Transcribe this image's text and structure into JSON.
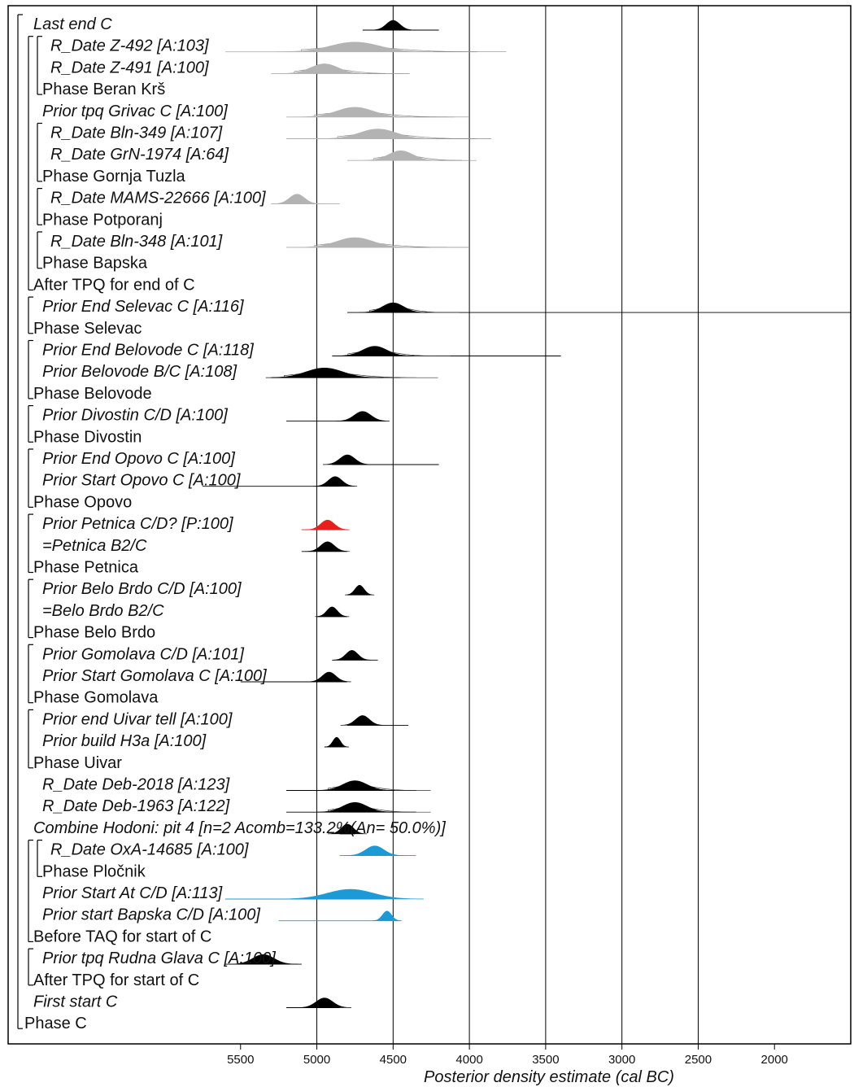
{
  "chart_data": {
    "type": "ridgeline",
    "xlabel": "Posterior density estimate (cal BC)",
    "xlim": [
      6000,
      1500
    ],
    "x_ticks": [
      5500,
      5000,
      4500,
      4000,
      3500,
      3000,
      2500,
      2000
    ],
    "grid_lines": [
      5000,
      4500,
      4000,
      3500,
      3000,
      2500
    ],
    "rows": [
      {
        "label": "Last end C",
        "italic": true,
        "level": 1,
        "color": "#000000",
        "peak": 4500,
        "sd": 45,
        "range": [
          4700,
          4200
        ]
      },
      {
        "label": "R_Date Z-492 [A:103]",
        "italic": true,
        "level": 3,
        "color": "#b3b3b3",
        "peak": 4750,
        "sd": 160,
        "range": [
          5600,
          3950
        ],
        "prior": true
      },
      {
        "label": "R_Date Z-491 [A:100]",
        "italic": true,
        "level": 3,
        "color": "#b3b3b3",
        "peak": 4950,
        "sd": 90,
        "range": [
          5300,
          4550
        ],
        "prior": true
      },
      {
        "label": "Phase Beran Krš",
        "italic": false,
        "level": 2
      },
      {
        "label": "Prior tpq Grivac C [A:100]",
        "italic": true,
        "level": 2,
        "color": "#b3b3b3",
        "peak": 4750,
        "sd": 120,
        "range": [
          5200,
          4100
        ],
        "prior": true
      },
      {
        "label": "R_Date Bln-349 [A:107]",
        "italic": true,
        "level": 3,
        "color": "#b3b3b3",
        "peak": 4600,
        "sd": 120,
        "range": [
          5200,
          3950
        ],
        "prior": true
      },
      {
        "label": "R_Date GrN-1974 [A:64]",
        "italic": true,
        "level": 3,
        "color": "#b3b3b3",
        "peak": 4450,
        "sd": 80,
        "range": [
          4800,
          4050
        ],
        "prior": true
      },
      {
        "label": "Phase Gornja Tuzla",
        "italic": false,
        "level": 2
      },
      {
        "label": "R_Date MAMS-22666 [A:100]",
        "italic": true,
        "level": 3,
        "color": "#b3b3b3",
        "peak": 5130,
        "sd": 50,
        "range": [
          5300,
          4850
        ],
        "prior": false
      },
      {
        "label": "Phase Potporanj",
        "italic": false,
        "level": 2
      },
      {
        "label": "R_Date Bln-348 [A:101]",
        "italic": true,
        "level": 3,
        "color": "#b3b3b3",
        "peak": 4750,
        "sd": 120,
        "range": [
          5200,
          4250
        ],
        "prior": true
      },
      {
        "label": "Phase Bapska",
        "italic": false,
        "level": 2
      },
      {
        "label": "After TPQ for end of C",
        "italic": false,
        "level": 1
      },
      {
        "label": "Prior End Selevac C [A:116]",
        "italic": true,
        "level": 2,
        "color": "#000000",
        "peak": 4500,
        "sd": 70,
        "range": [
          4800,
          1500
        ],
        "prior": true
      },
      {
        "label": "Phase Selevac",
        "italic": false,
        "level": 1
      },
      {
        "label": "Prior End Belovode C [A:118]",
        "italic": true,
        "level": 2,
        "color": "#000000",
        "peak": 4620,
        "sd": 80,
        "range": [
          4900,
          3400
        ],
        "prior": true
      },
      {
        "label": "Prior Belovode B/C [A:108]",
        "italic": true,
        "level": 2,
        "color": "#000000",
        "peak": 4950,
        "sd": 120,
        "range": [
          5300,
          4450
        ],
        "prior": true
      },
      {
        "label": "Phase Belovode",
        "italic": false,
        "level": 1
      },
      {
        "label": "Prior Divostin C/D [A:100]",
        "italic": true,
        "level": 2,
        "color": "#000000",
        "peak": 4700,
        "sd": 55,
        "range": [
          5200,
          4550
        ],
        "prior": false
      },
      {
        "label": "Phase Divostin",
        "italic": false,
        "level": 1
      },
      {
        "label": "Prior End Opovo C [A:100]",
        "italic": true,
        "level": 2,
        "color": "#000000",
        "peak": 4800,
        "sd": 50,
        "range": [
          4900,
          4200
        ],
        "prior": false
      },
      {
        "label": "Prior Start Opovo C [A:100]",
        "italic": true,
        "level": 2,
        "color": "#000000",
        "peak": 4880,
        "sd": 45,
        "range": [
          5750,
          4850
        ],
        "prior": false
      },
      {
        "label": "Phase Opovo",
        "italic": false,
        "level": 1
      },
      {
        "label": "Prior Petnica C/D? [P:100]",
        "italic": true,
        "level": 2,
        "color": "#e8201c",
        "peak": 4930,
        "sd": 45,
        "range": [
          5100,
          4800
        ],
        "prior": false
      },
      {
        "label": "=Petnica B2/C",
        "italic": true,
        "level": 2,
        "color": "#000000",
        "peak": 4930,
        "sd": 45,
        "range": [
          5100,
          4800
        ],
        "prior": false
      },
      {
        "label": "Phase Petnica",
        "italic": false,
        "level": 1
      },
      {
        "label": "Prior Belo Brdo C/D [A:100]",
        "italic": true,
        "level": 2,
        "color": "#000000",
        "peak": 4720,
        "sd": 30,
        "range": [
          4800,
          4650
        ],
        "prior": false
      },
      {
        "label": "=Belo Brdo B2/C",
        "italic": true,
        "level": 2,
        "color": "#000000",
        "peak": 4900,
        "sd": 35,
        "range": [
          5000,
          4800
        ],
        "prior": false
      },
      {
        "label": "Phase Belo Brdo",
        "italic": false,
        "level": 1
      },
      {
        "label": "Prior Gomolava C/D [A:101]",
        "italic": true,
        "level": 2,
        "color": "#000000",
        "peak": 4770,
        "sd": 40,
        "range": [
          4900,
          4600
        ],
        "prior": false
      },
      {
        "label": "Prior Start Gomolava C [A:100]",
        "italic": true,
        "level": 2,
        "color": "#000000",
        "peak": 4920,
        "sd": 45,
        "range": [
          5500,
          4800
        ],
        "prior": false
      },
      {
        "label": "Phase Gomolava",
        "italic": false,
        "level": 1
      },
      {
        "label": "Prior end Uivar tell [A:100]",
        "italic": true,
        "level": 2,
        "color": "#000000",
        "peak": 4700,
        "sd": 45,
        "range": [
          4800,
          4400
        ],
        "prior": false
      },
      {
        "label": "Prior build H3a [A:100]",
        "italic": true,
        "level": 2,
        "color": "#000000",
        "peak": 4870,
        "sd": 25,
        "range": [
          4950,
          4820
        ],
        "prior": false
      },
      {
        "label": "Phase Uivar",
        "italic": false,
        "level": 1
      },
      {
        "label": "R_Date Deb-2018 [A:123]",
        "italic": true,
        "level": 2,
        "color": "#000000",
        "peak": 4750,
        "sd": 80,
        "range": [
          5200,
          4350
        ],
        "prior": true
      },
      {
        "label": "R_Date Deb-1963 [A:122]",
        "italic": true,
        "level": 2,
        "color": "#000000",
        "peak": 4750,
        "sd": 80,
        "range": [
          5200,
          4350
        ],
        "prior": true
      },
      {
        "label": "Combine Hodoni: pit 4 [n=2 Acomb=133.2%(An= 50.0%)]",
        "italic": true,
        "level": 1,
        "color": "#000000",
        "peak": 4800,
        "sd": 40,
        "range": [
          4850,
          4750
        ],
        "prior": false
      },
      {
        "label": "R_Date OxA-14685 [A:100]",
        "italic": true,
        "level": 3,
        "color": "#1b9ad6",
        "peak": 4620,
        "sd": 60,
        "range": [
          4850,
          4350
        ],
        "prior": false
      },
      {
        "label": "Phase Pločnik",
        "italic": false,
        "level": 2
      },
      {
        "label": "Prior Start At C/D [A:113]",
        "italic": true,
        "level": 2,
        "color": "#1b9ad6",
        "peak": 4780,
        "sd": 150,
        "range": [
          5600,
          4550
        ],
        "prior": false
      },
      {
        "label": "Prior start Bapska C/D [A:100]",
        "italic": true,
        "level": 2,
        "color": "#1b9ad6",
        "peak": 4540,
        "sd": 30,
        "range": [
          5250,
          4450
        ],
        "prior": false
      },
      {
        "label": "Before TAQ for start of C",
        "italic": false,
        "level": 1
      },
      {
        "label": "Prior tpq Rudna Glava C [A:100]",
        "italic": true,
        "level": 2,
        "color": "#000000",
        "peak": 5350,
        "sd": 70,
        "range": [
          5600,
          5100
        ],
        "prior": false
      },
      {
        "label": "After TPQ for start of C",
        "italic": false,
        "level": 1
      },
      {
        "label": "First start C",
        "italic": true,
        "level": 1,
        "color": "#000000",
        "peak": 4950,
        "sd": 55,
        "range": [
          5200,
          4850
        ],
        "prior": false
      },
      {
        "label": "Phase C",
        "italic": false,
        "level": 0
      }
    ]
  }
}
